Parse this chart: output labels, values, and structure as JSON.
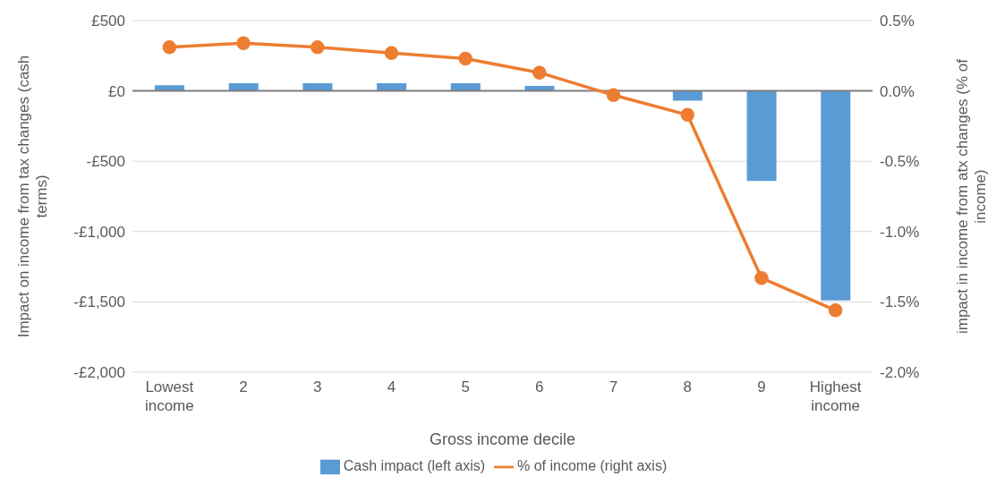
{
  "chart_data": {
    "type": "bar",
    "xlabel": "Gross income decile",
    "ylabel": "Impact on income from tax changes (cash terms)",
    "y2label": "impact in income from atx changes (% of income)",
    "categories": [
      "Lowest income",
      "2",
      "3",
      "4",
      "5",
      "6",
      "7",
      "8",
      "9",
      "Highest income"
    ],
    "series": [
      {
        "name": "Cash impact (left axis)",
        "color": "#5b9bd5",
        "values": [
          40,
          55,
          55,
          55,
          55,
          35,
          null,
          -70,
          -640,
          -1490
        ]
      },
      {
        "name": "% of income (right axis)",
        "type": "line",
        "axis": "y2",
        "color": "#ed7d31",
        "marker": "circle",
        "values": [
          0.31,
          0.34,
          0.31,
          0.27,
          0.23,
          0.13,
          -0.03,
          -0.17,
          -1.33,
          -1.56
        ]
      }
    ],
    "ylim": [
      -2000,
      500
    ],
    "yticks": [
      {
        "value": -2000,
        "label": "-£2,000"
      },
      {
        "value": -1500,
        "label": "-£1,500"
      },
      {
        "value": -1000,
        "label": "-£1,000"
      },
      {
        "value": -500,
        "label": "-£500"
      },
      {
        "value": 0,
        "label": "£0"
      },
      {
        "value": 500,
        "label": "£500"
      }
    ],
    "y2lim": [
      -2,
      0.5
    ],
    "y2ticks": [
      {
        "value": -2,
        "label": "-2.0%"
      },
      {
        "value": -1.5,
        "label": "-1.5%"
      },
      {
        "value": -1,
        "label": "-1.0%"
      },
      {
        "value": -0.5,
        "label": "-0.5%"
      },
      {
        "value": 0,
        "label": "0.0%"
      },
      {
        "value": 0.5,
        "label": "0.5%"
      }
    ],
    "grid": "y",
    "legend": "bottom"
  }
}
